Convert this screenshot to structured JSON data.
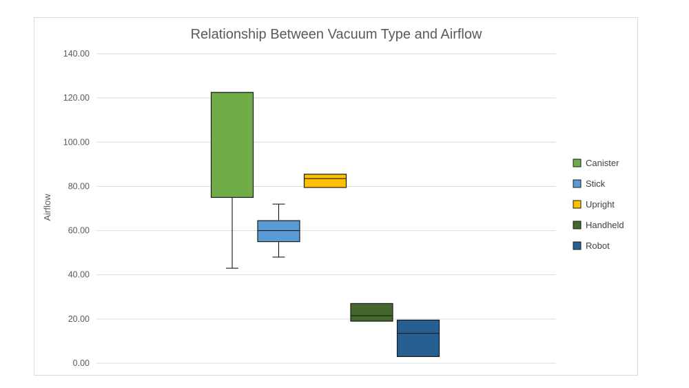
{
  "chart_data": {
    "type": "box",
    "title": "Relationship Between Vacuum Type and Airflow",
    "xlabel": "",
    "ylabel": "Airflow",
    "ylim": [
      0,
      140
    ],
    "yticks": [
      "0.00",
      "20.00",
      "40.00",
      "60.00",
      "80.00",
      "100.00",
      "120.00",
      "140.00"
    ],
    "grid": true,
    "legend_position": "right",
    "series": [
      {
        "name": "Canister",
        "color": "#70ad47",
        "q1": 75,
        "median": 122.5,
        "q3": 122.5,
        "whisker_low": 43,
        "whisker_high": 122.5
      },
      {
        "name": "Stick",
        "color": "#5b9bd5",
        "q1": 55,
        "median": 60,
        "q3": 64.5,
        "whisker_low": 48,
        "whisker_high": 72
      },
      {
        "name": "Upright",
        "color": "#ffc000",
        "q1": 79.5,
        "median": 83.5,
        "q3": 85.5,
        "whisker_low": 79.5,
        "whisker_high": 85.5
      },
      {
        "name": "Handheld",
        "color": "#43682b",
        "q1": 19,
        "median": 21.5,
        "q3": 27,
        "whisker_low": 19,
        "whisker_high": 27
      },
      {
        "name": "Robot",
        "color": "#255e91",
        "q1": 3,
        "median": 13.5,
        "q3": 19.5,
        "whisker_low": 3,
        "whisker_high": 19.5
      }
    ]
  }
}
